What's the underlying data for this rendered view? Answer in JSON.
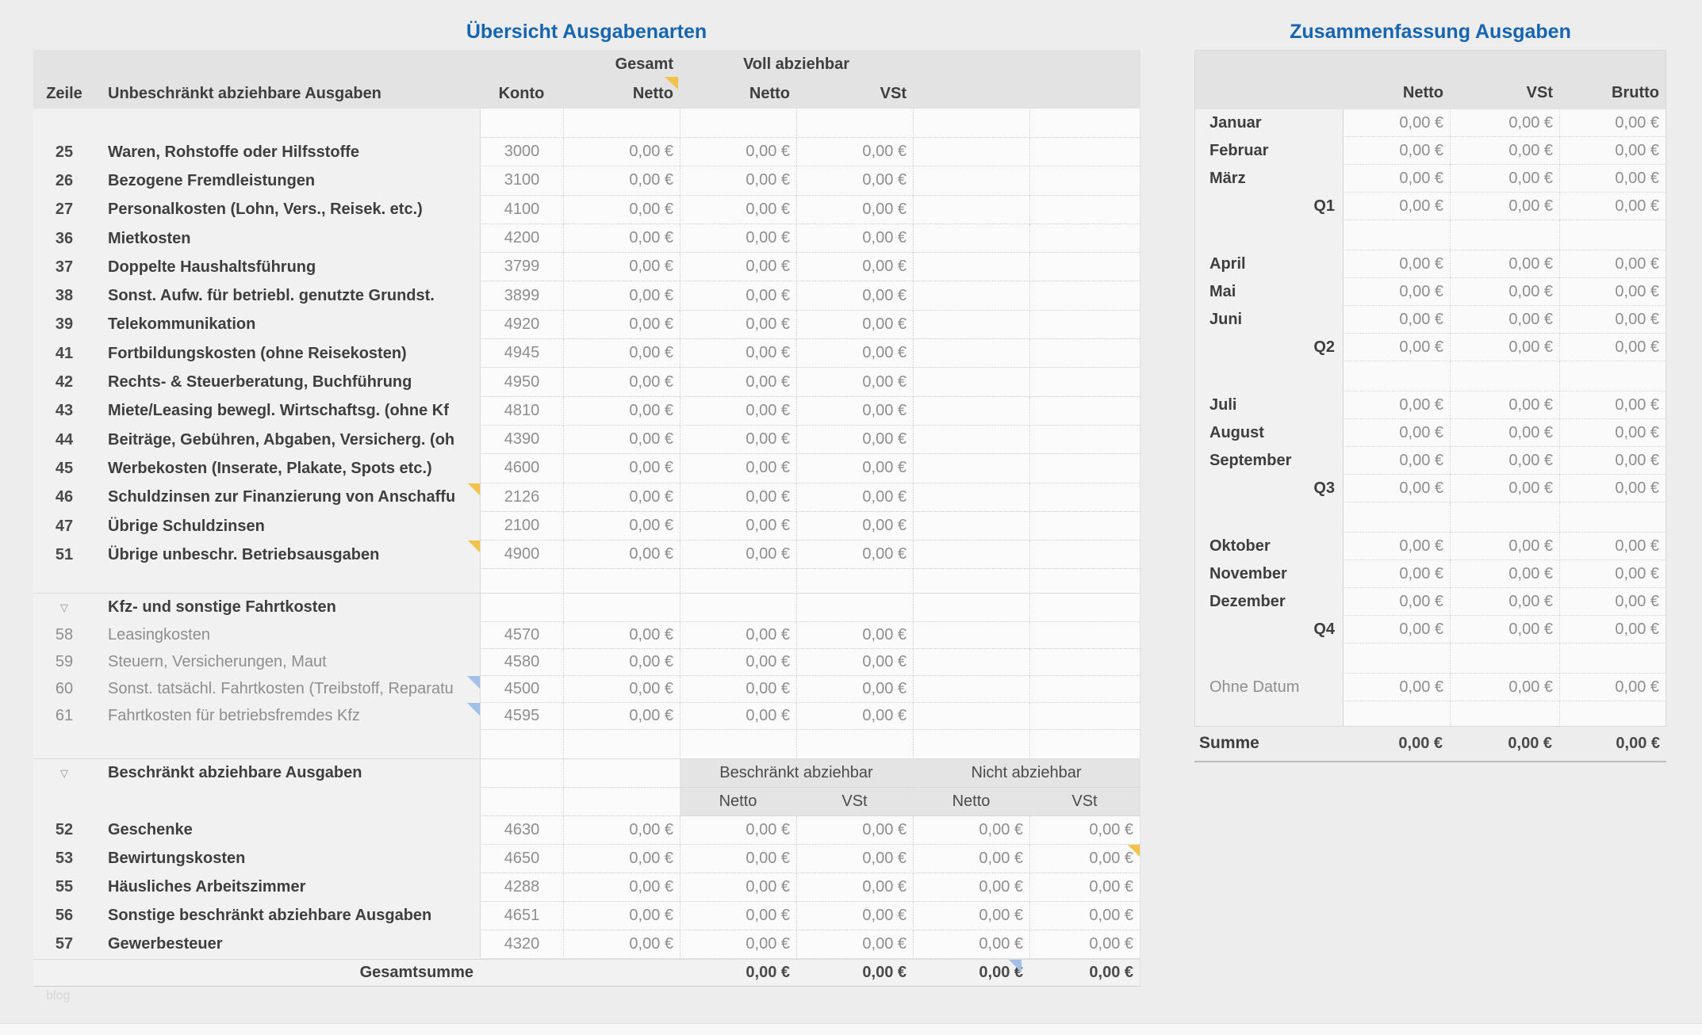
{
  "colors": {
    "title_blue": "#1565b2",
    "comment_marker_yellow": "#f2c24a",
    "annotation_marker_blue": "#a3c0e6",
    "header_band": "#e3e3e3"
  },
  "watermark": "blog",
  "left_table": {
    "title": "Übersicht Ausgabenarten",
    "header": {
      "zeile": "Zeile",
      "label": "Unbeschränkt abziehbare Ausgaben",
      "konto": "Konto",
      "group_gesamt": "Gesamt",
      "group_voll": "Voll abziehbar",
      "netto_gesamt": "Netto",
      "netto_voll": "Netto",
      "vst_voll": "VSt"
    },
    "rows_main": [
      {
        "zeile": "25",
        "label": "Waren, Rohstoffe oder Hilfsstoffe",
        "konto": "3000",
        "values": [
          "0,00 €",
          "0,00 €",
          "0,00 €"
        ]
      },
      {
        "zeile": "26",
        "label": "Bezogene Fremdleistungen",
        "konto": "3100",
        "values": [
          "0,00 €",
          "0,00 €",
          "0,00 €"
        ]
      },
      {
        "zeile": "27",
        "label": "Personalkosten (Lohn, Vers., Reisek. etc.)",
        "konto": "4100",
        "values": [
          "0,00 €",
          "0,00 €",
          "0,00 €"
        ]
      },
      {
        "zeile": "36",
        "label": "Mietkosten",
        "konto": "4200",
        "values": [
          "0,00 €",
          "0,00 €",
          "0,00 €"
        ]
      },
      {
        "zeile": "37",
        "label": "Doppelte Haushaltsführung",
        "konto": "3799",
        "values": [
          "0,00 €",
          "0,00 €",
          "0,00 €"
        ]
      },
      {
        "zeile": "38",
        "label": "Sonst. Aufw. für betriebl. genutzte Grundst.",
        "konto": "3899",
        "values": [
          "0,00 €",
          "0,00 €",
          "0,00 €"
        ]
      },
      {
        "zeile": "39",
        "label": "Telekommunikation",
        "konto": "4920",
        "values": [
          "0,00 €",
          "0,00 €",
          "0,00 €"
        ]
      },
      {
        "zeile": "41",
        "label": "Fortbildungskosten (ohne Reisekosten)",
        "konto": "4945",
        "values": [
          "0,00 €",
          "0,00 €",
          "0,00 €"
        ]
      },
      {
        "zeile": "42",
        "label": "Rechts- & Steuerberatung, Buchführung",
        "konto": "4950",
        "values": [
          "0,00 €",
          "0,00 €",
          "0,00 €"
        ]
      },
      {
        "zeile": "43",
        "label": "Miete/Leasing bewegl. Wirtschaftsg. (ohne Kf",
        "konto": "4810",
        "values": [
          "0,00 €",
          "0,00 €",
          "0,00 €"
        ]
      },
      {
        "zeile": "44",
        "label": "Beiträge, Gebühren, Abgaben, Versicherg. (oh",
        "konto": "4390",
        "values": [
          "0,00 €",
          "0,00 €",
          "0,00 €"
        ]
      },
      {
        "zeile": "45",
        "label": "Werbekosten (Inserate, Plakate, Spots etc.)",
        "konto": "4600",
        "values": [
          "0,00 €",
          "0,00 €",
          "0,00 €"
        ]
      },
      {
        "zeile": "46",
        "label": "Schuldzinsen zur Finanzierung von Anschaffu",
        "konto": "2126",
        "values": [
          "0,00 €",
          "0,00 €",
          "0,00 €"
        ],
        "marker": "yellow"
      },
      {
        "zeile": "47",
        "label": "Übrige Schuldzinsen",
        "konto": "2100",
        "values": [
          "0,00 €",
          "0,00 €",
          "0,00 €"
        ]
      },
      {
        "zeile": "51",
        "label": "Übrige unbeschr. Betriebsausgaben",
        "konto": "4900",
        "values": [
          "0,00 €",
          "0,00 €",
          "0,00 €"
        ],
        "marker": "yellow"
      }
    ],
    "section_kfz": {
      "title": "Kfz- und sonstige Fahrtkosten",
      "rows": [
        {
          "zeile": "58",
          "label": "Leasingkosten",
          "konto": "4570",
          "values": [
            "0,00 €",
            "0,00 €",
            "0,00 €"
          ]
        },
        {
          "zeile": "59",
          "label": "Steuern, Versicherungen, Maut",
          "konto": "4580",
          "values": [
            "0,00 €",
            "0,00 €",
            "0,00 €"
          ]
        },
        {
          "zeile": "60",
          "label": "Sonst. tatsächl. Fahrtkosten (Treibstoff, Reparatu",
          "konto": "4500",
          "values": [
            "0,00 €",
            "0,00 €",
            "0,00 €"
          ],
          "marker": "blue"
        },
        {
          "zeile": "61",
          "label": "Fahrtkosten für betriebsfremdes Kfz",
          "konto": "4595",
          "values": [
            "0,00 €",
            "0,00 €",
            "0,00 €"
          ],
          "marker": "blue"
        }
      ]
    },
    "section_restricted": {
      "title": "Beschränkt abziehbare Ausgaben",
      "subheader": {
        "group_beschraenkt": "Beschränkt abziehbar",
        "group_nicht": "Nicht abziehbar",
        "cols": [
          "Netto",
          "VSt",
          "Netto",
          "VSt"
        ]
      },
      "rows": [
        {
          "zeile": "52",
          "label": "Geschenke",
          "konto": "4630",
          "values": [
            "0,00 €",
            "0,00 €",
            "0,00 €",
            "0,00 €",
            "0,00 €"
          ]
        },
        {
          "zeile": "53",
          "label": "Bewirtungskosten",
          "konto": "4650",
          "values": [
            "0,00 €",
            "0,00 €",
            "0,00 €",
            "0,00 €",
            "0,00 €"
          ],
          "value_marker": {
            "col": 4,
            "color": "yellow"
          }
        },
        {
          "zeile": "55",
          "label": "Häusliches Arbeitszimmer",
          "konto": "4288",
          "values": [
            "0,00 €",
            "0,00 €",
            "0,00 €",
            "0,00 €",
            "0,00 €"
          ]
        },
        {
          "zeile": "56",
          "label": "Sonstige beschränkt abziehbare Ausgaben",
          "konto": "4651",
          "values": [
            "0,00 €",
            "0,00 €",
            "0,00 €",
            "0,00 €",
            "0,00 €"
          ]
        },
        {
          "zeile": "57",
          "label": "Gewerbesteuer",
          "konto": "4320",
          "values": [
            "0,00 €",
            "0,00 €",
            "0,00 €",
            "0,00 €",
            "0,00 €"
          ]
        }
      ]
    },
    "footer": {
      "label": "Gesamtsumme",
      "values": [
        "0,00 €",
        "0,00 €",
        "0,00 €",
        "0,00 €"
      ],
      "value_marker": {
        "col": 2,
        "color": "blue"
      }
    }
  },
  "right_table": {
    "title": "Zusammenfassung Ausgaben",
    "header": {
      "netto": "Netto",
      "vst": "VSt",
      "brutto": "Brutto"
    },
    "groups": [
      [
        {
          "label": "Januar",
          "style": "month",
          "values": [
            "0,00 €",
            "0,00 €",
            "0,00 €"
          ]
        },
        {
          "label": "Februar",
          "style": "month",
          "values": [
            "0,00 €",
            "0,00 €",
            "0,00 €"
          ]
        },
        {
          "label": "März",
          "style": "month",
          "values": [
            "0,00 €",
            "0,00 €",
            "0,00 €"
          ]
        },
        {
          "label": "Q1",
          "style": "quarter",
          "values": [
            "0,00 €",
            "0,00 €",
            "0,00 €"
          ]
        }
      ],
      [
        {
          "label": "April",
          "style": "month",
          "values": [
            "0,00 €",
            "0,00 €",
            "0,00 €"
          ]
        },
        {
          "label": "Mai",
          "style": "month",
          "values": [
            "0,00 €",
            "0,00 €",
            "0,00 €"
          ]
        },
        {
          "label": "Juni",
          "style": "month",
          "values": [
            "0,00 €",
            "0,00 €",
            "0,00 €"
          ]
        },
        {
          "label": "Q2",
          "style": "quarter",
          "values": [
            "0,00 €",
            "0,00 €",
            "0,00 €"
          ]
        }
      ],
      [
        {
          "label": "Juli",
          "style": "month",
          "values": [
            "0,00 €",
            "0,00 €",
            "0,00 €"
          ]
        },
        {
          "label": "August",
          "style": "month",
          "values": [
            "0,00 €",
            "0,00 €",
            "0,00 €"
          ]
        },
        {
          "label": "September",
          "style": "month",
          "values": [
            "0,00 €",
            "0,00 €",
            "0,00 €"
          ]
        },
        {
          "label": "Q3",
          "style": "quarter",
          "values": [
            "0,00 €",
            "0,00 €",
            "0,00 €"
          ]
        }
      ],
      [
        {
          "label": "Oktober",
          "style": "month",
          "values": [
            "0,00 €",
            "0,00 €",
            "0,00 €"
          ]
        },
        {
          "label": "November",
          "style": "month",
          "values": [
            "0,00 €",
            "0,00 €",
            "0,00 €"
          ]
        },
        {
          "label": "Dezember",
          "style": "month",
          "values": [
            "0,00 €",
            "0,00 €",
            "0,00 €"
          ]
        },
        {
          "label": "Q4",
          "style": "quarter",
          "values": [
            "0,00 €",
            "0,00 €",
            "0,00 €"
          ]
        }
      ]
    ],
    "extra_row": {
      "label": "Ohne Datum",
      "style": "plain",
      "values": [
        "0,00 €",
        "0,00 €",
        "0,00 €"
      ]
    },
    "footer": {
      "label": "Summe",
      "values": [
        "0,00 €",
        "0,00 €",
        "0,00 €"
      ]
    }
  }
}
